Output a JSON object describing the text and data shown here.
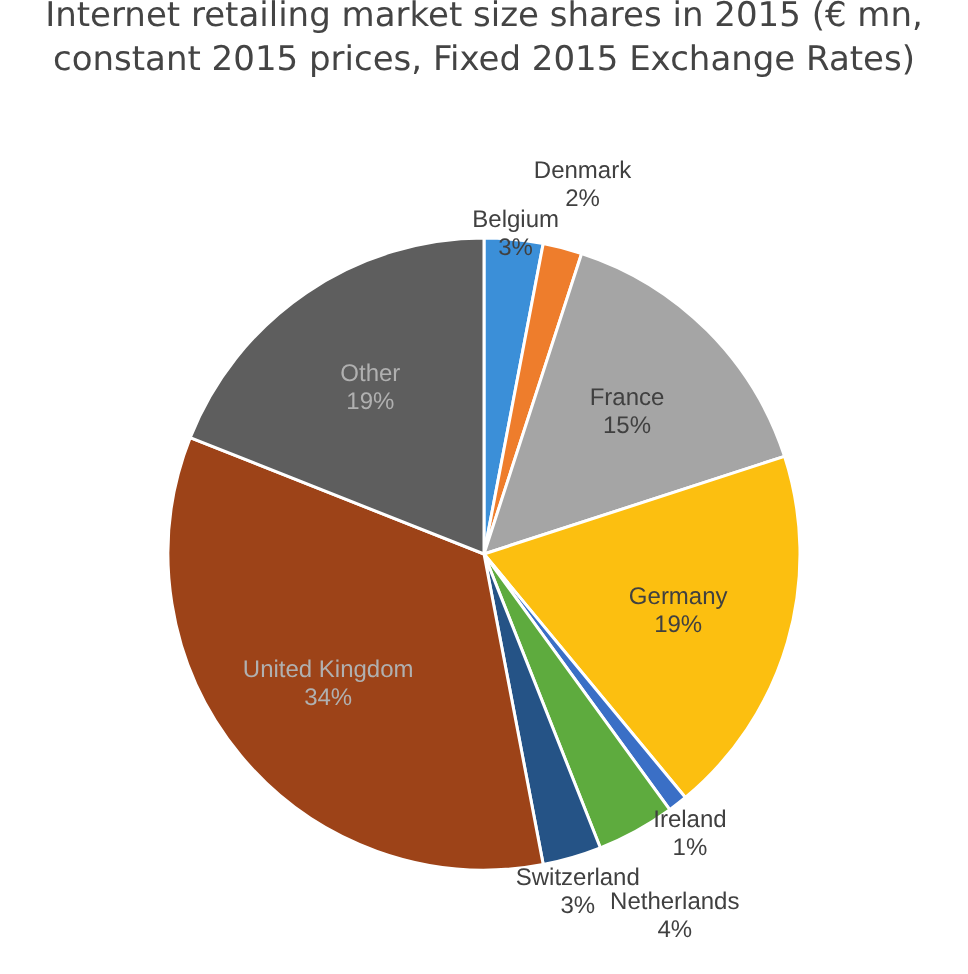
{
  "chart_data": {
    "type": "pie",
    "title": "Internet retailing market size shares in 2015 (€ mn, constant 2015 prices, Fixed 2015 Exchange Rates)",
    "categories": [
      "Belgium",
      "Denmark",
      "France",
      "Germany",
      "Ireland",
      "Netherlands",
      "Switzerland",
      "United Kingdom",
      "Other"
    ],
    "values": [
      3,
      2,
      15,
      19,
      1,
      4,
      3,
      34,
      19
    ],
    "colors": [
      "#3b8fd8",
      "#ee7d2c",
      "#a5a5a5",
      "#fcbf10",
      "#3a6fc6",
      "#5eab3e",
      "#255386",
      "#9d4318",
      "#5e5e5e"
    ],
    "value_labels": [
      "3%",
      "2%",
      "15%",
      "19%",
      "1%",
      "4%",
      "3%",
      "34%",
      "19%"
    ],
    "legend": false
  }
}
